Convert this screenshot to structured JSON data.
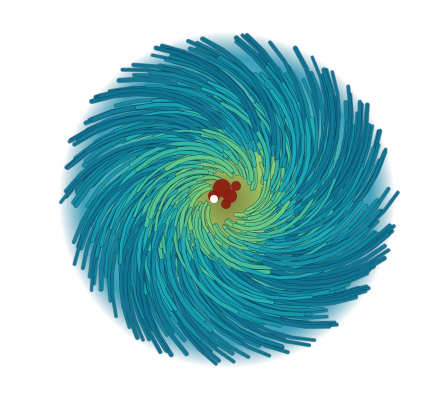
{
  "image": {
    "subject": "streamline-vortex",
    "background_color": "#ffffff",
    "palette": {
      "outer": "#0f6f8f",
      "mid": "#18a9b8",
      "inner": "#5cc68a",
      "core": "#b9d24a",
      "hot": "#8b1a10",
      "shadow": "#0a3a52"
    }
  }
}
